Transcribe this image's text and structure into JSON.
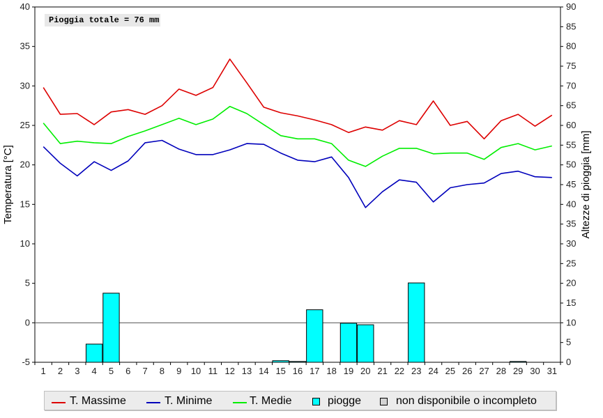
{
  "annotation": "Pioggia totale = 76 mm",
  "legend": {
    "max_label": "T. Massime",
    "min_label": "T. Minime",
    "med_label": "T. Medie",
    "rain_label": "piogge",
    "na_label": "non disponibile o incompleto"
  },
  "colors": {
    "max": "#dd0000",
    "min": "#0000bb",
    "med": "#00ee00",
    "rain": "#00ffff",
    "na": "#d3d3d3"
  },
  "chart_data": {
    "type": "line",
    "xlabel": "",
    "ylabel": "Temperatura [°C]",
    "y2label": "Altezze di pioggia [mm]",
    "x": [
      1,
      2,
      3,
      4,
      5,
      6,
      7,
      8,
      9,
      10,
      11,
      12,
      13,
      14,
      15,
      16,
      17,
      18,
      19,
      20,
      21,
      22,
      23,
      24,
      25,
      26,
      27,
      28,
      29,
      30,
      31
    ],
    "ylim": [
      -5,
      40
    ],
    "yticks": [
      -5,
      0,
      5,
      10,
      15,
      20,
      25,
      30,
      35,
      40
    ],
    "y2lim": [
      0,
      90
    ],
    "y2ticks": [
      0,
      5,
      10,
      15,
      20,
      25,
      30,
      35,
      40,
      45,
      50,
      55,
      60,
      65,
      70,
      75,
      80,
      85,
      90
    ],
    "zero_line": 0,
    "series": [
      {
        "name": "T. Massime",
        "values": [
          29.8,
          26.4,
          26.5,
          25.1,
          26.7,
          27.0,
          26.4,
          27.5,
          29.6,
          28.8,
          29.8,
          33.4,
          30.4,
          27.3,
          26.6,
          26.2,
          25.7,
          25.1,
          24.1,
          24.8,
          24.4,
          25.6,
          25.1,
          28.1,
          25.0,
          25.5,
          23.3,
          25.6,
          26.4,
          24.9,
          26.3
        ]
      },
      {
        "name": "T. Minime",
        "values": [
          22.3,
          20.2,
          18.6,
          20.4,
          19.3,
          20.5,
          22.8,
          23.1,
          22.0,
          21.3,
          21.3,
          21.9,
          22.7,
          22.6,
          21.5,
          20.6,
          20.4,
          21.0,
          18.4,
          14.6,
          16.6,
          18.1,
          17.8,
          15.3,
          17.1,
          17.5,
          17.7,
          18.9,
          19.2,
          18.5,
          18.4
        ]
      },
      {
        "name": "T. Medie",
        "values": [
          25.3,
          22.7,
          23.0,
          22.8,
          22.7,
          23.6,
          24.3,
          25.1,
          25.9,
          25.1,
          25.8,
          27.4,
          26.5,
          25.1,
          23.7,
          23.3,
          23.3,
          22.7,
          20.6,
          19.8,
          21.1,
          22.1,
          22.1,
          21.4,
          21.5,
          21.5,
          20.7,
          22.2,
          22.7,
          21.9,
          22.4
        ]
      }
    ],
    "rain": {
      "name": "piogge",
      "values": [
        0,
        0,
        0,
        4.6,
        17.5,
        0,
        0,
        0,
        0,
        0,
        0,
        0,
        0,
        0,
        0.4,
        0.2,
        13.3,
        0,
        9.9,
        9.5,
        0,
        0,
        20.1,
        0,
        0,
        0,
        0,
        0,
        0.2,
        0,
        0
      ]
    }
  }
}
